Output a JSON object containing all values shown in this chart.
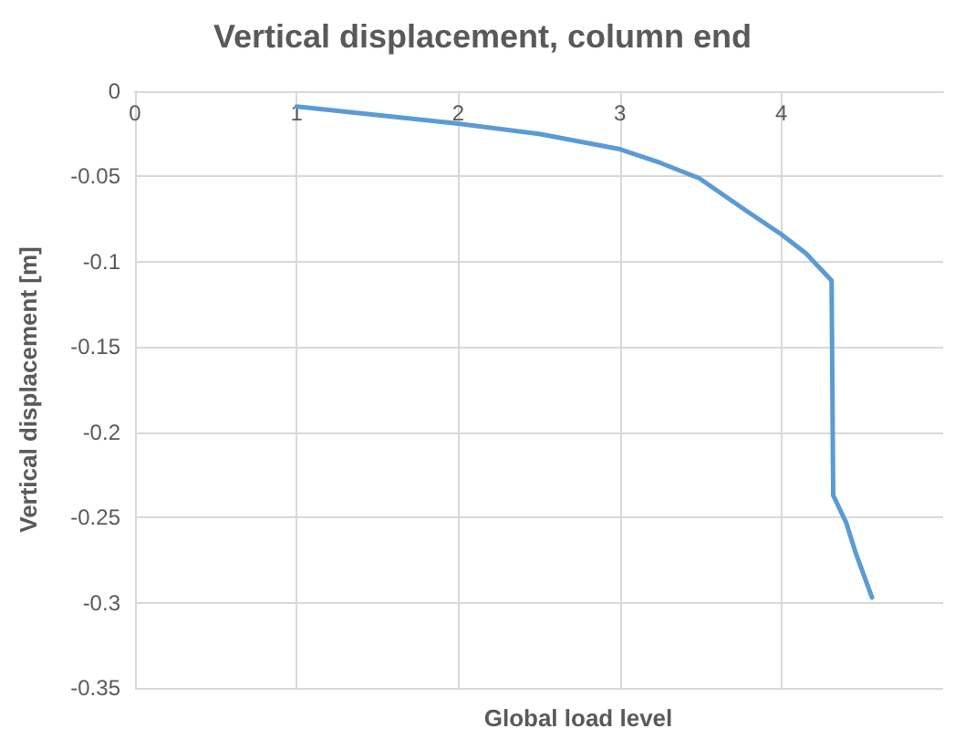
{
  "chart_data": {
    "type": "line",
    "title": "Vertical displacement, column end",
    "xlabel": "Global load level",
    "ylabel": "Vertical displacement [m]",
    "x": [
      1,
      2,
      2.5,
      3,
      3.25,
      3.49,
      3.78,
      4,
      4.15,
      4.31,
      4.32,
      4.4,
      4.46,
      4.56
    ],
    "series": [
      {
        "color": "#5b9bd5",
        "values": [
          -0.009,
          -0.019,
          -0.025,
          -0.034,
          -0.042,
          -0.051,
          -0.07,
          -0.084,
          -0.095,
          -0.111,
          -0.237,
          -0.253,
          -0.271,
          -0.297
        ]
      }
    ],
    "xlim": [
      0,
      5
    ],
    "xticks": [
      0,
      1,
      2,
      3,
      4
    ],
    "ylim": [
      -0.35,
      0
    ],
    "yticks": [
      -0.35,
      -0.3,
      -0.25,
      -0.2,
      -0.15,
      -0.1,
      -0.05,
      0
    ],
    "grid": true,
    "marker": "none",
    "line_style": "solid"
  }
}
